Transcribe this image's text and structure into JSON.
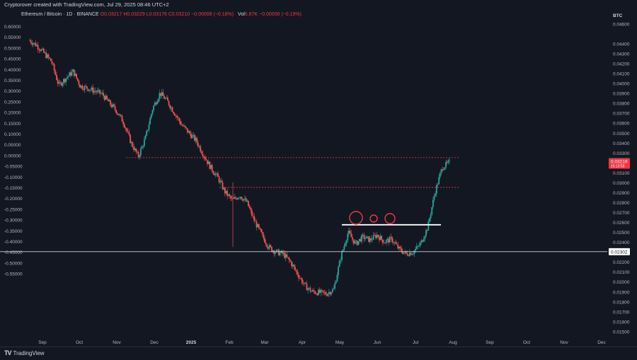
{
  "header": {
    "caption": "Cryptorover created with TradingView.com, Jul 29, 2025 08:46 UTC+2"
  },
  "legend": {
    "symbol": "Ethereum / Bitcoin · 1D · BINANCE",
    "open": "O0.03217",
    "high": "H0.03229",
    "low": "L0.03176",
    "close": "C0.03210",
    "change": "−0.00008 (−0.18%)",
    "vol_label": "Vol",
    "vol_value": "6.87K",
    "vol_change": "−0.00006 (−0.19%)"
  },
  "footer": {
    "brand": "TradingView",
    "logo": "TV"
  },
  "colors": {
    "background": "#131722",
    "up": "#26a69a",
    "down": "#ef5350",
    "accent_red": "#f23645",
    "level_white": "#ffffff"
  },
  "chart_data": {
    "type": "candlestick",
    "currency": "BTC",
    "left_axis": {
      "ticks": [
        "0.60000",
        "0.55000",
        "0.50000",
        "0.45000",
        "0.40000",
        "0.35000",
        "0.30000",
        "0.25000",
        "0.20000",
        "0.15000",
        "0.10000",
        "0.05000",
        "0.00000",
        "-0.05000",
        "-0.10000",
        "-0.15000",
        "-0.20000",
        "-0.25000",
        "-0.30000",
        "-0.35000",
        "-0.40000",
        "-0.45000",
        "-0.50000",
        "-0.55000"
      ]
    },
    "right_axis": {
      "ticks": [
        "0.04600",
        "0.04400",
        "0.04300",
        "0.04200",
        "0.04100",
        "0.04000",
        "0.03900",
        "0.03800",
        "0.03700",
        "0.03600",
        "0.03500",
        "0.03400",
        "0.03300",
        "0.03200",
        "0.03100",
        "0.03000",
        "0.02900",
        "0.02800",
        "0.02700",
        "0.02600",
        "0.02500",
        "0.02400",
        "0.02300",
        "0.02200",
        "0.02100",
        "0.02000",
        "0.01900",
        "0.01800",
        "0.01700",
        "0.01600",
        "0.01500"
      ],
      "ylim": [
        0.0146,
        0.0466
      ]
    },
    "x_axis": {
      "ticks": [
        "Sep",
        "Oct",
        "Nov",
        "Dec",
        "2025",
        "Feb",
        "Mar",
        "Apr",
        "May",
        "Jun",
        "Jul",
        "Aug",
        "Sep",
        "Oct",
        "Nov",
        "Dec"
      ]
    },
    "price_label": "0.03210",
    "price_label_sub": "15:13:58",
    "level_label": "0.02302",
    "levels": [
      {
        "kind": "dashed",
        "value": 0.0325
      },
      {
        "kind": "dashed",
        "value": 0.0295
      },
      {
        "kind": "solid",
        "value": 0.02573
      },
      {
        "kind": "solid-full",
        "value": 0.02302
      }
    ],
    "circle_marks": 3,
    "trend": [
      [
        0,
        0.0443
      ],
      [
        2,
        0.0438
      ],
      [
        4,
        0.043
      ],
      [
        6,
        0.0422
      ],
      [
        8,
        0.0398
      ],
      [
        10,
        0.0405
      ],
      [
        12,
        0.0412
      ],
      [
        14,
        0.0397
      ],
      [
        16,
        0.0395
      ],
      [
        18,
        0.0392
      ],
      [
        20,
        0.0389
      ],
      [
        22,
        0.038
      ],
      [
        24,
        0.0372
      ],
      [
        26,
        0.036
      ],
      [
        28,
        0.034
      ],
      [
        30,
        0.0326
      ],
      [
        32,
        0.0345
      ],
      [
        34,
        0.0375
      ],
      [
        36,
        0.039
      ],
      [
        38,
        0.0382
      ],
      [
        40,
        0.037
      ],
      [
        42,
        0.0358
      ],
      [
        44,
        0.035
      ],
      [
        46,
        0.0342
      ],
      [
        48,
        0.0328
      ],
      [
        50,
        0.0315
      ],
      [
        52,
        0.0305
      ],
      [
        54,
        0.029
      ],
      [
        56,
        0.0282
      ],
      [
        58,
        0.0287
      ],
      [
        60,
        0.028
      ],
      [
        62,
        0.0262
      ],
      [
        64,
        0.0248
      ],
      [
        66,
        0.0235
      ],
      [
        68,
        0.023
      ],
      [
        70,
        0.0228
      ],
      [
        72,
        0.022
      ],
      [
        74,
        0.0208
      ],
      [
        76,
        0.0196
      ],
      [
        78,
        0.019
      ],
      [
        80,
        0.0189
      ],
      [
        82,
        0.0188
      ],
      [
        84,
        0.0192
      ],
      [
        86,
        0.0225
      ],
      [
        88,
        0.025
      ],
      [
        90,
        0.0238
      ],
      [
        92,
        0.0245
      ],
      [
        94,
        0.0242
      ],
      [
        96,
        0.0247
      ],
      [
        98,
        0.024
      ],
      [
        100,
        0.0243
      ],
      [
        102,
        0.0233
      ],
      [
        104,
        0.0228
      ],
      [
        106,
        0.023
      ],
      [
        108,
        0.0238
      ],
      [
        110,
        0.0255
      ],
      [
        112,
        0.029
      ],
      [
        114,
        0.0315
      ],
      [
        116,
        0.032
      ]
    ],
    "x_span": 116
  }
}
